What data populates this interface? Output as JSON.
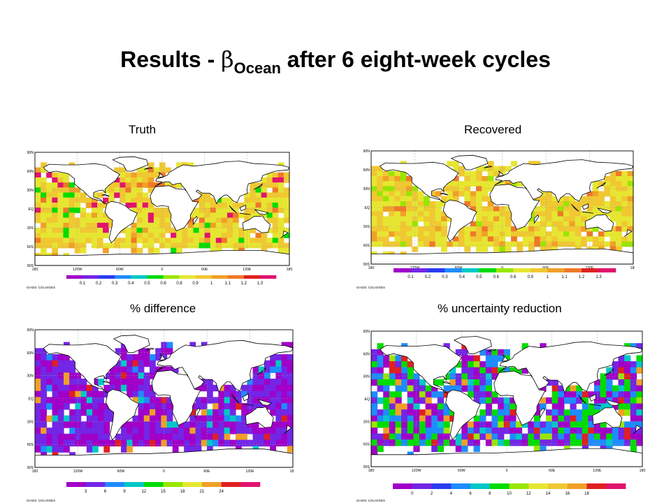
{
  "slide": {
    "title_prefix": "Results - ",
    "title_greek": "β",
    "title_subscript": "Ocean",
    "title_suffix": " after 6 eight-week cycles"
  },
  "grads_credit": "GrADS: COLA/IGES",
  "axes": {
    "lon_ticks": [
      "180",
      "120W",
      "60W",
      "0",
      "60E",
      "120E",
      "180"
    ],
    "lat_ticks": [
      "90N",
      "60N",
      "30N",
      "EQ",
      "30S",
      "60S",
      "90S"
    ]
  },
  "panels": [
    {
      "id": "truth",
      "label": "Truth",
      "palette": [
        "#a000c8",
        "#7326e6",
        "#2a3cf2",
        "#1e8cff",
        "#00c8c8",
        "#00dc00",
        "#9ae600",
        "#e6e632",
        "#f0c832",
        "#f0a028",
        "#f07828",
        "#e02020",
        "#e0146e"
      ],
      "colorbar_labels": [
        "0.1",
        "0.2",
        "0.3",
        "0.4",
        "0.5",
        "0.6",
        "0.8",
        "0.9",
        "1",
        "1.1",
        "1.2",
        "1.3"
      ],
      "dominant": [
        7,
        8
      ],
      "sparse": [
        9,
        10,
        5,
        12
      ]
    },
    {
      "id": "recovered",
      "label": "Recovered",
      "palette": [
        "#a000c8",
        "#7326e6",
        "#2a3cf2",
        "#1e8cff",
        "#00c8c8",
        "#00dc00",
        "#9ae600",
        "#e6e632",
        "#f0c832",
        "#f0a028",
        "#f07828",
        "#e02020",
        "#e0146e"
      ],
      "colorbar_labels": [
        "0.1",
        "0.2",
        "0.3",
        "0.4",
        "0.5",
        "0.6",
        "0.8",
        "0.9",
        "1",
        "1.1",
        "1.2",
        "1.3"
      ],
      "dominant": [
        7,
        8
      ],
      "sparse": [
        9,
        10,
        6
      ]
    },
    {
      "id": "pct-difference",
      "label": "% difference",
      "palette": [
        "#a000c8",
        "#7326e6",
        "#1e8cff",
        "#00c8c8",
        "#00dc00",
        "#9ae600",
        "#e6e632",
        "#f0a028",
        "#e02020",
        "#e0146e"
      ],
      "colorbar_labels": [
        "3",
        "6",
        "9",
        "12",
        "15",
        "18",
        "21",
        "24"
      ],
      "dominant": [
        0,
        1
      ],
      "sparse": [
        2,
        3,
        7,
        8
      ]
    },
    {
      "id": "pct-uncertainty-reduction",
      "label": "% uncertainty reduction",
      "palette": [
        "#a000c8",
        "#7326e6",
        "#2a3cf2",
        "#1e8cff",
        "#00c8c8",
        "#00dc00",
        "#9ae600",
        "#e6e632",
        "#f0c832",
        "#f0a028",
        "#e02020",
        "#e0146e"
      ],
      "colorbar_labels": [
        "0",
        "2",
        "4",
        "6",
        "8",
        "10",
        "12",
        "14",
        "16",
        "18"
      ],
      "dominant": [
        0,
        1,
        3,
        5
      ],
      "sparse": [
        6,
        4,
        9,
        10
      ]
    }
  ]
}
